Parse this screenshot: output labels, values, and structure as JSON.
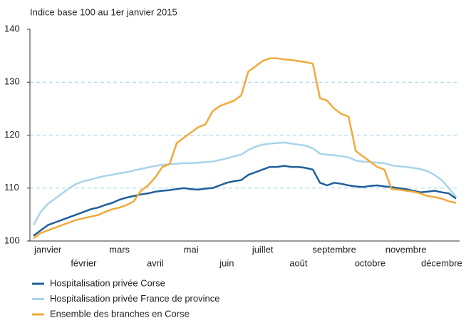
{
  "chart_data": {
    "type": "line",
    "title": "Indice base 100 au 1er janvier 2015",
    "categories": [
      null,
      null,
      "janvier",
      null,
      null,
      null,
      null,
      "février",
      null,
      null,
      null,
      null,
      "mars",
      null,
      null,
      null,
      null,
      "avril",
      null,
      null,
      null,
      null,
      "mai",
      null,
      null,
      null,
      null,
      "juin",
      null,
      null,
      null,
      null,
      "juillet",
      null,
      null,
      null,
      null,
      "août",
      null,
      null,
      null,
      null,
      "septembre",
      null,
      null,
      null,
      null,
      "octobre",
      null,
      null,
      null,
      null,
      "novembre",
      null,
      null,
      null,
      null,
      "décembre",
      null,
      null
    ],
    "series": [
      {
        "name": "Hospitalisation privée Corse",
        "color": "#1f5f9a",
        "values": [
          101,
          102,
          103,
          103.5,
          104,
          104.5,
          105,
          105.5,
          106,
          106.3,
          106.8,
          107.2,
          107.8,
          108.2,
          108.5,
          108.8,
          109,
          109.3,
          109.5,
          109.6,
          109.8,
          110,
          109.8,
          109.7,
          109.9,
          110,
          110.5,
          111,
          111.3,
          111.5,
          112.5,
          113,
          113.5,
          114,
          114,
          114.2,
          114,
          114,
          113.8,
          113.5,
          111,
          110.5,
          111,
          110.8,
          110.5,
          110.3,
          110.2,
          110.4,
          110.5,
          110.3,
          110.2,
          110,
          109.8,
          109.5,
          109.2,
          109.3,
          109.5,
          109.2,
          109,
          108
        ]
      },
      {
        "name": "Hospitalisation privée France de province",
        "color": "#a8d4e8",
        "values": [
          103,
          105.5,
          107,
          108,
          109,
          110,
          110.8,
          111.3,
          111.6,
          112,
          112.3,
          112.5,
          112.8,
          113,
          113.3,
          113.6,
          113.9,
          114.2,
          114.4,
          114.5,
          114.6,
          114.7,
          114.7,
          114.8,
          114.9,
          115,
          115.3,
          115.6,
          116,
          116.3,
          117.2,
          117.8,
          118.2,
          118.4,
          118.5,
          118.6,
          118.4,
          118.2,
          118,
          117.5,
          116.5,
          116.3,
          116.2,
          116,
          115.8,
          115.2,
          115,
          114.9,
          114.8,
          114.7,
          114.3,
          114.1,
          114,
          113.8,
          113.6,
          113.2,
          112.5,
          111.5,
          110,
          108.3
        ]
      },
      {
        "name": "Ensemble des branches en Corse",
        "color": "#f2a93b",
        "values": [
          100.5,
          101.5,
          102,
          102.5,
          103,
          103.5,
          104,
          104.3,
          104.6,
          104.9,
          105.5,
          106,
          106.3,
          106.8,
          107.5,
          109.5,
          110.5,
          112,
          114,
          114.5,
          118.5,
          119.5,
          120.5,
          121.5,
          122,
          124.5,
          125.5,
          126,
          126.5,
          127.5,
          132,
          133,
          134,
          134.5,
          134.5,
          134.3,
          134.2,
          134,
          133.8,
          133.5,
          127,
          126.5,
          125,
          124,
          123.5,
          117,
          116,
          115,
          114,
          113.5,
          109.8,
          109.7,
          109.5,
          109.3,
          109,
          108.5,
          108.3,
          108,
          107.5,
          107.2
        ]
      }
    ],
    "ylim": [
      100,
      140
    ],
    "yticks": [
      100,
      110,
      120,
      130,
      140
    ],
    "grid": true,
    "legend": "bottom"
  }
}
